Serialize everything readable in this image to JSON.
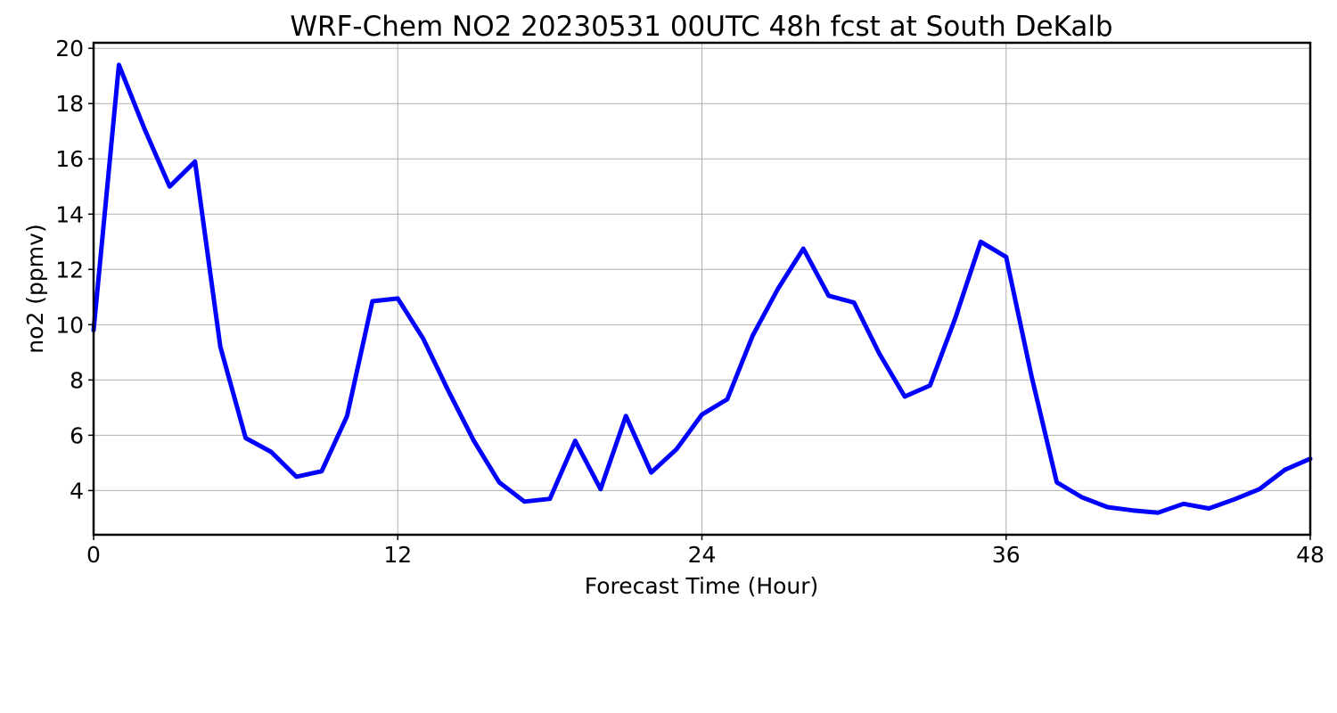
{
  "chart_data": {
    "type": "line",
    "title": "WRF-Chem NO2  20230531 00UTC 48h fcst at South DeKalb",
    "xlabel": "Forecast Time (Hour)",
    "ylabel": "no2  (ppmv)",
    "xlim": [
      0,
      48
    ],
    "ylim": [
      2.4,
      20.2
    ],
    "xticks": [
      0,
      12,
      24,
      36,
      48
    ],
    "yticks": [
      4,
      6,
      8,
      10,
      12,
      14,
      16,
      18,
      20
    ],
    "grid": true,
    "series": [
      {
        "color": "#0000ff",
        "x": [
          0,
          1,
          2,
          3,
          4,
          5,
          6,
          7,
          8,
          9,
          10,
          11,
          12,
          13,
          14,
          15,
          16,
          17,
          18,
          19,
          20,
          21,
          22,
          23,
          24,
          25,
          26,
          27,
          28,
          29,
          30,
          31,
          32,
          33,
          34,
          35,
          36,
          37,
          38,
          39,
          40,
          41,
          42,
          43,
          44,
          45,
          46,
          47,
          48
        ],
        "values": [
          9.8,
          19.4,
          17.1,
          15.0,
          15.9,
          9.2,
          5.9,
          5.4,
          4.5,
          4.7,
          6.7,
          10.85,
          10.95,
          9.5,
          7.6,
          5.8,
          4.3,
          3.6,
          3.7,
          5.8,
          4.05,
          6.7,
          4.65,
          5.5,
          6.75,
          7.3,
          9.6,
          11.3,
          12.75,
          11.05,
          10.8,
          8.95,
          7.4,
          7.8,
          10.25,
          13.0,
          12.45,
          8.15,
          4.3,
          3.75,
          3.4,
          3.28,
          3.2,
          3.52,
          3.35,
          3.68,
          4.05,
          4.75,
          5.15
        ]
      }
    ]
  }
}
